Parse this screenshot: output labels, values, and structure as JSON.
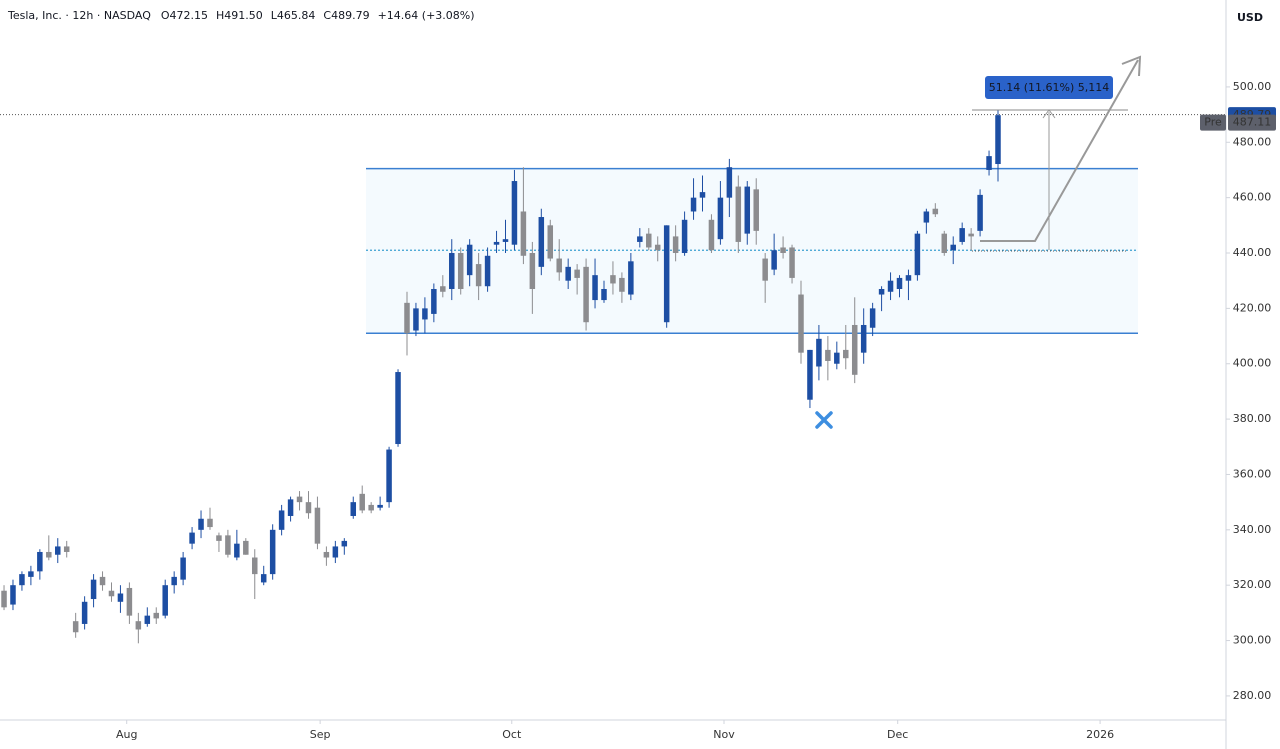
{
  "chart_data": {
    "type": "candlestick",
    "title": "Tesla, Inc. · 12h · NASDAQ",
    "header_fields": [
      "O472.15",
      "H491.50",
      "L465.84",
      "C489.79"
    ],
    "header_change": "+14.64 (+3.08%)",
    "y_axis_unit": "USD",
    "up_color": "#1d4ea3",
    "down_color": "#8c8c8f",
    "x": [
      0,
      1,
      2,
      3,
      4,
      5,
      6,
      7,
      8,
      9,
      10,
      11,
      12,
      13,
      14,
      15,
      16,
      17,
      18,
      19,
      20,
      21,
      22,
      23,
      24,
      25,
      26,
      27,
      28,
      29,
      30,
      31,
      32,
      33,
      34,
      35,
      36,
      37,
      38,
      39,
      40,
      41,
      42,
      43,
      44,
      45,
      46,
      47,
      48,
      49,
      50,
      51,
      52,
      53,
      54,
      55,
      56,
      57,
      58,
      59,
      60,
      61,
      62,
      63,
      64,
      65,
      66,
      67,
      68,
      69,
      70,
      71,
      72,
      73,
      74,
      75,
      76,
      77,
      78,
      79,
      80,
      81,
      82,
      83,
      84,
      85,
      86,
      87,
      88,
      89,
      90,
      91,
      92,
      93,
      94,
      95,
      96,
      97,
      98,
      99,
      100,
      101,
      102,
      103,
      104,
      105,
      106,
      107,
      108,
      109,
      110,
      111
    ],
    "open": [
      318,
      313,
      320,
      323,
      325,
      332,
      331,
      334,
      307,
      306,
      315,
      323,
      318,
      314,
      319,
      307,
      306,
      310,
      309,
      320,
      322,
      335,
      340,
      344,
      338,
      338,
      330,
      336,
      330,
      321,
      324,
      340,
      345,
      352,
      350,
      348,
      332,
      330,
      334,
      345,
      353,
      349,
      348,
      350,
      371,
      422,
      412,
      416,
      418,
      428,
      427,
      440,
      432,
      436,
      428,
      443,
      444,
      443,
      455,
      440,
      435,
      450,
      438,
      430,
      434,
      435,
      423,
      423,
      432,
      431,
      425,
      444,
      447,
      443,
      415,
      446,
      440,
      455,
      460,
      452,
      445,
      460,
      464,
      447,
      463,
      438,
      434,
      442,
      442,
      425,
      387,
      399,
      405,
      400,
      405,
      414,
      404,
      413,
      425,
      426,
      427,
      430,
      432,
      451,
      456,
      447,
      441,
      444,
      447,
      448,
      470,
      472.15
    ],
    "high": [
      320,
      322,
      325,
      327,
      333,
      338,
      337,
      336,
      310,
      316,
      324,
      325,
      321,
      320,
      321,
      310,
      312,
      312,
      322,
      325,
      332,
      341,
      347,
      348,
      339,
      340,
      340,
      337,
      333,
      327,
      342,
      349,
      352,
      354,
      354,
      352,
      334,
      336,
      337,
      352,
      356,
      350,
      352,
      370,
      398,
      426,
      422,
      424,
      429,
      432,
      445,
      442,
      445,
      440,
      442,
      448,
      452,
      470,
      471,
      444,
      456,
      452,
      445,
      438,
      436,
      438,
      438,
      430,
      437,
      433,
      440,
      449,
      449,
      446,
      450,
      450,
      455,
      467,
      468,
      454,
      466,
      474,
      468,
      466,
      467,
      440,
      447,
      446,
      443,
      430,
      405,
      414,
      410,
      408,
      414,
      424,
      420,
      422,
      428,
      433,
      432,
      434,
      448,
      456,
      458,
      448,
      446,
      451,
      449,
      463,
      477,
      491.5
    ],
    "low": [
      311,
      311,
      318,
      320,
      322,
      329,
      328,
      330,
      301,
      304,
      312,
      318,
      314,
      310,
      306,
      299,
      305,
      306,
      308,
      317,
      320,
      333,
      337,
      340,
      332,
      330,
      329,
      331,
      315,
      320,
      322,
      338,
      343,
      347,
      344,
      333,
      327,
      328,
      331,
      344,
      346,
      346,
      347,
      348,
      370,
      403,
      410,
      411,
      415,
      424,
      423,
      425,
      428,
      423,
      426,
      440,
      440,
      441,
      436,
      418,
      432,
      437,
      430,
      427,
      425,
      412,
      420,
      422,
      425,
      422,
      423,
      442,
      441,
      437,
      413,
      437,
      439,
      452,
      455,
      440,
      443,
      453,
      440,
      443,
      443,
      422,
      432,
      438,
      429,
      400,
      384,
      394,
      394,
      398,
      398,
      393,
      400,
      410,
      419,
      423,
      424,
      423,
      430,
      447,
      453,
      439,
      436,
      443,
      441,
      446,
      468,
      465.84
    ],
    "close": [
      312,
      320,
      324,
      325,
      332,
      330,
      334,
      332,
      303,
      314,
      322,
      320,
      316,
      317,
      309,
      304,
      309,
      308,
      320,
      323,
      330,
      339,
      344,
      341,
      336,
      331,
      335,
      331,
      324,
      324,
      340,
      347,
      351,
      350,
      346,
      335,
      330,
      334,
      336,
      350,
      347,
      347,
      349,
      369,
      397,
      411,
      420,
      420,
      427,
      426,
      440,
      427,
      443,
      428,
      439,
      444,
      445,
      466,
      439,
      427,
      453,
      438,
      433,
      435,
      431,
      415,
      432,
      427,
      429,
      426,
      437,
      446,
      442,
      441,
      450,
      440,
      452,
      460,
      462,
      441,
      460,
      471,
      444,
      464,
      448,
      430,
      441,
      440,
      431,
      404,
      405,
      409,
      401,
      404,
      402,
      396,
      414,
      420,
      427,
      430,
      431,
      432,
      447,
      455,
      454,
      440,
      443,
      449,
      446,
      461,
      475,
      489.79
    ],
    "levels": [
      470.5,
      441,
      411
    ],
    "measure_label": "51.14 (11.61%) 5,114",
    "pre_label": "Pre",
    "pre_price": 487.11,
    "xlim": [
      -0.45,
      136.35
    ],
    "ylim": [
      271.3,
      531.4
    ],
    "xticks": [
      {
        "value": 13.7,
        "label": "Aug"
      },
      {
        "value": 35.3,
        "label": "Sep"
      },
      {
        "value": 56.7,
        "label": "Oct"
      },
      {
        "value": 80.4,
        "label": "Nov"
      },
      {
        "value": 99.8,
        "label": "Dec"
      },
      {
        "value": 122.4,
        "label": "2026"
      }
    ],
    "yticks": [
      {
        "value": 280,
        "label": "280.00"
      },
      {
        "value": 300,
        "label": "300.00"
      },
      {
        "value": 320,
        "label": "320.00"
      },
      {
        "value": 340,
        "label": "340.00"
      },
      {
        "value": 360,
        "label": "360.00"
      },
      {
        "value": 380,
        "label": "380.00"
      },
      {
        "value": 400,
        "label": "400.00"
      },
      {
        "value": 420,
        "label": "420.00"
      },
      {
        "value": 440,
        "label": "440.00"
      },
      {
        "value": 460,
        "label": "460.00"
      },
      {
        "value": 480,
        "label": "480.00"
      },
      {
        "value": 500,
        "label": "500.00"
      }
    ]
  }
}
